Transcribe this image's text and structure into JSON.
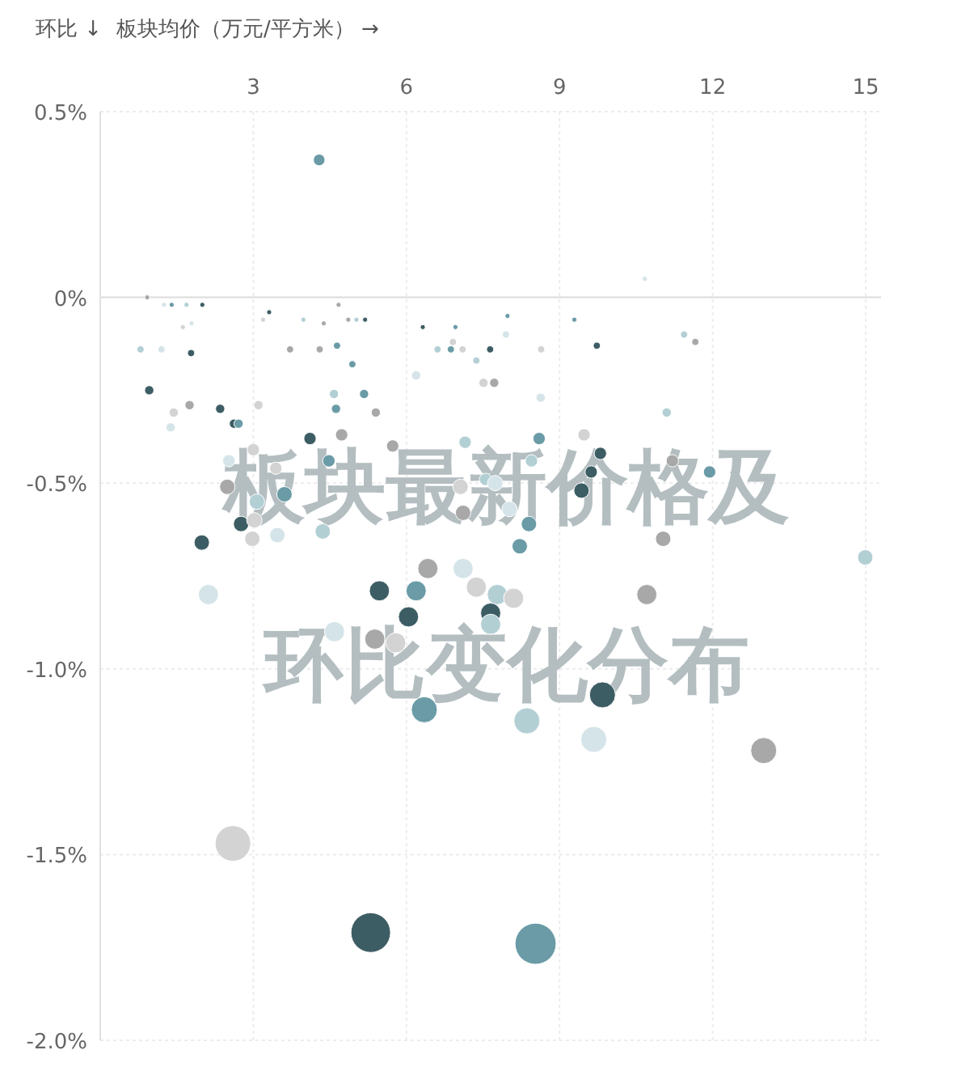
{
  "chart_data": {
    "type": "bubble",
    "title": "板块最新价格及环比变化分布",
    "xlabel": "板块均价（万元/平方米） →",
    "ylabel": "环比 ↓",
    "xlim": [
      0,
      15.3
    ],
    "xticks": [
      3,
      6,
      9,
      12,
      15
    ],
    "ylim": [
      -2,
      0.5
    ],
    "yticks": [
      {
        "value": 0.5,
        "label": "0.5%"
      },
      {
        "value": 0,
        "label": "0%"
      },
      {
        "value": -0.5,
        "label": "-0.5%"
      },
      {
        "value": -1,
        "label": "-1.0%"
      },
      {
        "value": -1.5,
        "label": "-1.5%"
      },
      {
        "value": -2,
        "label": "-2.0%"
      }
    ],
    "grid": true,
    "marker": "circle",
    "x": [
      4.29,
      0.92,
      1.25,
      1.4,
      1.69,
      2.0,
      1.62,
      1.79,
      0.79,
      1.2,
      1.78,
      0.96,
      1.75,
      1.44,
      1.38,
      2.35,
      2.62,
      2.71,
      3.1,
      3.0,
      4.11,
      4.73,
      5.73,
      3.31,
      3.19,
      4.67,
      3.98,
      4.38,
      4.86,
      5.02,
      5.19,
      3.72,
      4.3,
      4.64,
      4.94,
      4.58,
      5.17,
      4.62,
      5.4,
      6.19,
      10.67,
      6.32,
      6.96,
      7.98,
      9.29,
      9.73,
      6.91,
      6.61,
      6.87,
      7.1,
      7.64,
      7.95,
      8.64,
      7.37,
      11.44,
      11.66,
      7.51,
      7.72,
      8.63,
      11.1,
      7.15,
      8.6,
      9.48,
      9.8,
      2.52,
      3.44,
      4.48,
      2.49,
      3.07,
      3.61,
      2.76,
      3.02,
      2.98,
      3.47,
      4.36,
      1.99,
      2.12,
      7.06,
      7.11,
      7.55,
      6.42,
      7.11,
      5.47,
      6.19,
      7.37,
      6.04,
      4.59,
      5.38,
      5.79,
      6.35,
      9.62,
      9.43,
      11.21,
      11.94,
      8.45,
      7.74,
      8.02,
      8.4,
      8.22,
      11.03,
      14.99,
      10.71,
      7.78,
      8.1,
      7.65,
      7.65,
      9.84,
      8.36,
      9.67,
      13.0,
      2.6,
      5.3,
      8.53
    ],
    "values": [
      0.37,
      0.0,
      -0.02,
      -0.02,
      -0.02,
      -0.02,
      -0.08,
      -0.07,
      -0.14,
      -0.14,
      -0.15,
      -0.25,
      -0.29,
      -0.31,
      -0.35,
      -0.3,
      -0.34,
      -0.34,
      -0.29,
      -0.41,
      -0.38,
      -0.37,
      -0.4,
      -0.04,
      -0.06,
      -0.02,
      -0.06,
      -0.07,
      -0.06,
      -0.06,
      -0.06,
      -0.14,
      -0.14,
      -0.13,
      -0.18,
      -0.26,
      -0.26,
      -0.3,
      -0.31,
      -0.21,
      0.05,
      -0.08,
      -0.08,
      -0.05,
      -0.06,
      -0.13,
      -0.12,
      -0.14,
      -0.14,
      -0.14,
      -0.14,
      -0.1,
      -0.14,
      -0.17,
      -0.1,
      -0.12,
      -0.23,
      -0.23,
      -0.27,
      -0.31,
      -0.39,
      -0.38,
      -0.37,
      -0.42,
      -0.44,
      -0.46,
      -0.44,
      -0.51,
      -0.55,
      -0.53,
      -0.61,
      -0.6,
      -0.65,
      -0.64,
      -0.63,
      -0.66,
      -0.8,
      -0.51,
      -0.58,
      -0.49,
      -0.73,
      -0.73,
      -0.79,
      -0.79,
      -0.78,
      -0.86,
      -0.9,
      -0.92,
      -0.93,
      -1.11,
      -0.47,
      -0.52,
      -0.44,
      -0.47,
      -0.44,
      -0.5,
      -0.57,
      -0.61,
      -0.67,
      -0.65,
      -0.7,
      -0.8,
      -0.8,
      -0.81,
      -0.85,
      -0.88,
      -1.07,
      -1.14,
      -1.19,
      -1.22,
      -1.47,
      -1.71,
      -1.74
    ],
    "sizes": [
      0.08,
      0.015,
      0.015,
      0.015,
      0.015,
      0.015,
      0.015,
      0.015,
      0.03,
      0.03,
      0.03,
      0.05,
      0.05,
      0.05,
      0.05,
      0.05,
      0.05,
      0.05,
      0.05,
      0.09,
      0.09,
      0.09,
      0.09,
      0.015,
      0.015,
      0.015,
      0.015,
      0.015,
      0.015,
      0.015,
      0.015,
      0.03,
      0.03,
      0.03,
      0.03,
      0.05,
      0.05,
      0.05,
      0.05,
      0.05,
      0.015,
      0.015,
      0.015,
      0.015,
      0.015,
      0.03,
      0.03,
      0.03,
      0.03,
      0.03,
      0.03,
      0.03,
      0.03,
      0.03,
      0.03,
      0.03,
      0.05,
      0.05,
      0.05,
      0.05,
      0.09,
      0.09,
      0.09,
      0.09,
      0.09,
      0.09,
      0.09,
      0.14,
      0.14,
      0.14,
      0.14,
      0.14,
      0.14,
      0.14,
      0.14,
      0.14,
      0.24,
      0.14,
      0.14,
      0.09,
      0.24,
      0.24,
      0.24,
      0.24,
      0.24,
      0.24,
      0.24,
      0.24,
      0.24,
      0.4,
      0.09,
      0.14,
      0.09,
      0.09,
      0.09,
      0.14,
      0.14,
      0.14,
      0.14,
      0.14,
      0.14,
      0.24,
      0.24,
      0.24,
      0.24,
      0.24,
      0.4,
      0.4,
      0.4,
      0.4,
      0.75,
      0.93,
      1
    ],
    "colors": [
      "#6a9ba6",
      "#a8a8a8",
      "#d5e4e8",
      "#6a9ba6",
      "#b2cfd4",
      "#3d5d64",
      "#d3d3d3",
      "#d5e4e8",
      "#b2cfd4",
      "#d5e4e8",
      "#3d5d64",
      "#3d5d64",
      "#a8a8a8",
      "#d3d3d3",
      "#d5e4e8",
      "#3d5d64",
      "#3d5d64",
      "#6a9ba6",
      "#d3d3d3",
      "#d3d3d3",
      "#3d5d64",
      "#a8a8a8",
      "#a8a8a8",
      "#3d5d64",
      "#d3d3d3",
      "#a8a8a8",
      "#b2cfd4",
      "#a8a8a8",
      "#a8a8a8",
      "#b2cfd4",
      "#3d5d64",
      "#a8a8a8",
      "#a8a8a8",
      "#6a9ba6",
      "#6a9ba6",
      "#b2cfd4",
      "#6a9ba6",
      "#6a9ba6",
      "#a8a8a8",
      "#d5e4e8",
      "#d5e4e8",
      "#3d5d64",
      "#6a9ba6",
      "#6a9ba6",
      "#6a9ba6",
      "#3d5d64",
      "#d3d3d3",
      "#b2cfd4",
      "#6a9ba6",
      "#d3d3d3",
      "#3d5d64",
      "#d5e4e8",
      "#d3d3d3",
      "#b2cfd4",
      "#b2cfd4",
      "#a8a8a8",
      "#d3d3d3",
      "#a8a8a8",
      "#d5e4e8",
      "#b2cfd4",
      "#b2cfd4",
      "#6a9ba6",
      "#d3d3d3",
      "#3d5d64",
      "#d5e4e8",
      "#d3d3d3",
      "#6a9ba6",
      "#a8a8a8",
      "#b2cfd4",
      "#6a9ba6",
      "#3d5d64",
      "#d3d3d3",
      "#d3d3d3",
      "#d5e4e8",
      "#b2cfd4",
      "#3d5d64",
      "#d5e4e8",
      "#d3d3d3",
      "#a8a8a8",
      "#b2cfd4",
      "#a8a8a8",
      "#d5e4e8",
      "#3d5d64",
      "#6a9ba6",
      "#d3d3d3",
      "#3d5d64",
      "#d5e4e8",
      "#a8a8a8",
      "#d3d3d3",
      "#6a9ba6",
      "#3d5d64",
      "#3d5d64",
      "#a8a8a8",
      "#6a9ba6",
      "#b2cfd4",
      "#d5e4e8",
      "#d5e4e8",
      "#6a9ba6",
      "#6a9ba6",
      "#a8a8a8",
      "#b2cfd4",
      "#a8a8a8",
      "#b2cfd4",
      "#d3d3d3",
      "#3d5d64",
      "#b2cfd4",
      "#3d5d64",
      "#b2cfd4",
      "#d5e4e8",
      "#a8a8a8",
      "#d3d3d3",
      "#3d5d64",
      "#6a9ba6"
    ]
  }
}
